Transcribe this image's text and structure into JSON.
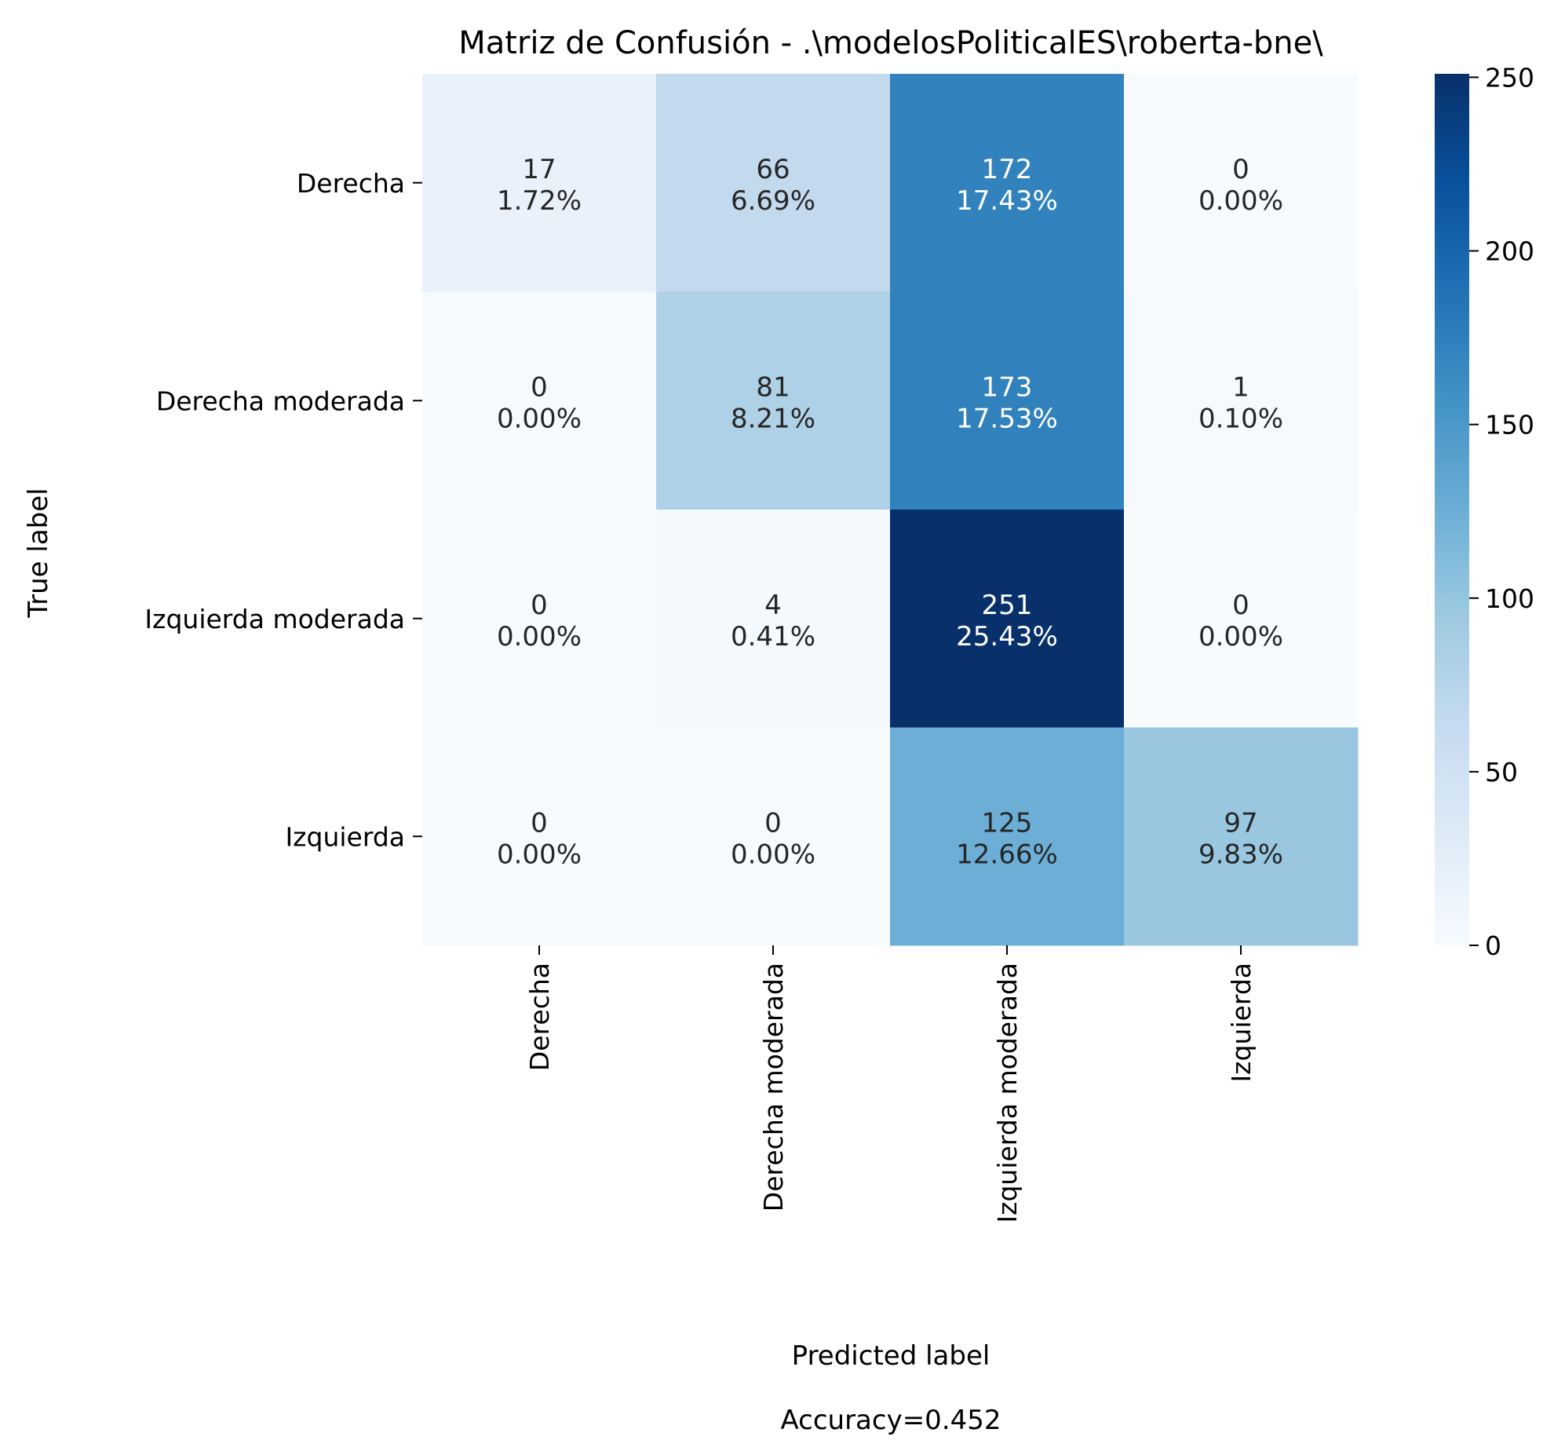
{
  "chart_data": {
    "type": "heatmap",
    "title": "Matriz de Confusión - .\\modelosPoliticalES\\roberta-bne\\",
    "xlabel": "Predicted label",
    "ylabel": "True label",
    "footer": "Accuracy=0.452",
    "row_labels": [
      "Derecha",
      "Derecha moderada",
      "Izquierda moderada",
      "Izquierda"
    ],
    "col_labels": [
      "Derecha",
      "Derecha moderada",
      "Izquierda moderada",
      "Izquierda"
    ],
    "values": [
      [
        17,
        66,
        172,
        0
      ],
      [
        0,
        81,
        173,
        1
      ],
      [
        0,
        4,
        251,
        0
      ],
      [
        0,
        0,
        125,
        97
      ]
    ],
    "percentages": [
      [
        "1.72%",
        "6.69%",
        "17.43%",
        "0.00%"
      ],
      [
        "0.00%",
        "8.21%",
        "17.53%",
        "0.10%"
      ],
      [
        "0.00%",
        "0.41%",
        "25.43%",
        "0.00%"
      ],
      [
        "0.00%",
        "0.00%",
        "12.66%",
        "9.83%"
      ]
    ],
    "colorscale": "Blues",
    "colorbar": {
      "range": [
        0,
        251
      ],
      "ticks": [
        0,
        50,
        100,
        150,
        200,
        250
      ]
    },
    "grid": false
  }
}
